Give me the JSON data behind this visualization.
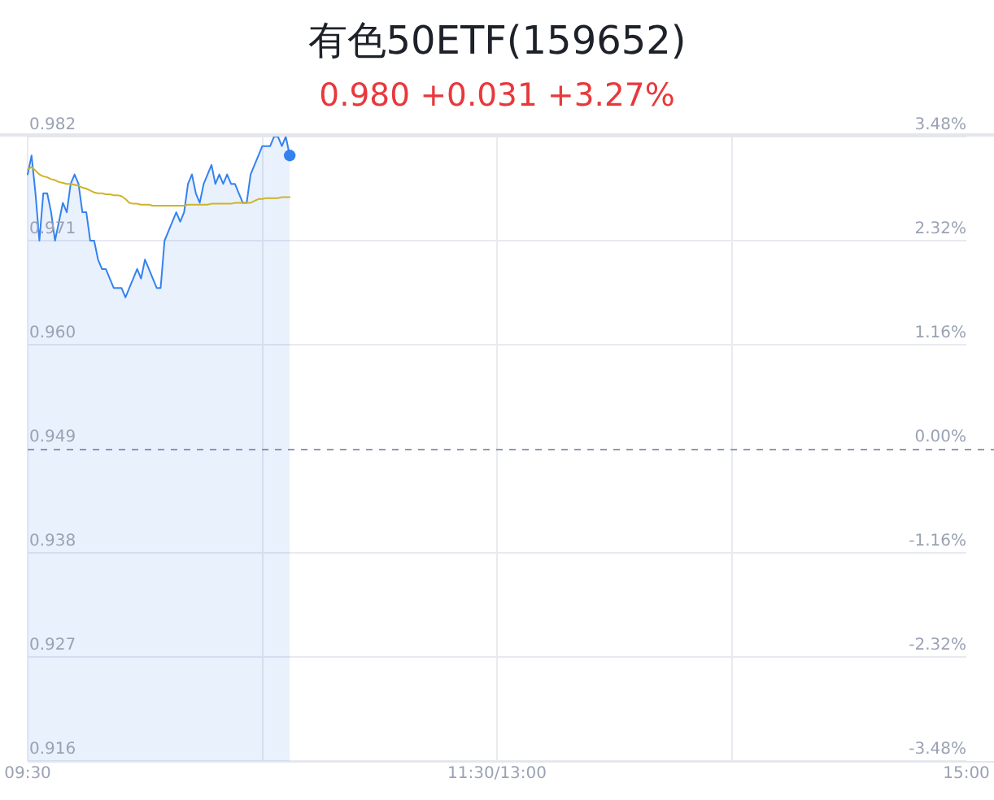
{
  "chart_data": {
    "type": "area",
    "title": "有色50ETF(159652)",
    "subtitle": "0.980 +0.031 +3.27%",
    "categories": [
      "09:30",
      null,
      null,
      null,
      null,
      null,
      null,
      null,
      null,
      null,
      null,
      null,
      null,
      null,
      null,
      null,
      null,
      null,
      null,
      null,
      null,
      null,
      null,
      null,
      null,
      null,
      null,
      null,
      null,
      null,
      null,
      null,
      null,
      null,
      null,
      null,
      null,
      null,
      null,
      null,
      null,
      null,
      null,
      null,
      null,
      null,
      null,
      null,
      null,
      null,
      null,
      null,
      null,
      null,
      null,
      null,
      null,
      null,
      null,
      null,
      null,
      null,
      null,
      null,
      null,
      null,
      null,
      null,
      null,
      null,
      null,
      null,
      null,
      null,
      null,
      null,
      null,
      null,
      null,
      null,
      null,
      null,
      null,
      null,
      null,
      null,
      null,
      null,
      null,
      null,
      null,
      null,
      null,
      null,
      null,
      null,
      null,
      null,
      null,
      null,
      null,
      null,
      null,
      null,
      null,
      null,
      null,
      null,
      null,
      null,
      null,
      null,
      null,
      null,
      null,
      null,
      null,
      null,
      null,
      null,
      "11:30/13:00",
      null,
      null,
      null,
      null,
      null,
      null,
      null,
      null,
      null,
      null,
      null,
      null,
      null,
      null,
      null,
      null,
      null,
      null,
      null,
      null,
      null,
      null,
      null,
      null,
      null,
      null,
      null,
      null,
      null,
      null,
      null,
      null,
      null,
      null,
      null,
      null,
      null,
      null,
      null,
      null,
      null,
      null,
      null,
      null,
      null,
      null,
      null,
      null,
      null,
      null,
      null,
      null,
      null,
      null,
      null,
      null,
      null,
      null,
      null,
      null,
      null,
      null,
      null,
      null,
      null,
      null,
      null,
      null,
      null,
      null,
      null,
      null,
      null,
      null,
      null,
      null,
      null,
      null,
      null,
      null,
      null,
      null,
      null,
      null,
      null,
      null,
      null,
      null,
      null,
      null,
      null,
      null,
      null,
      null,
      null,
      null,
      null,
      null,
      null,
      null,
      null,
      null,
      null,
      null,
      null,
      null,
      null,
      null,
      null,
      null,
      null,
      null,
      null,
      null,
      null,
      null,
      null,
      null,
      null,
      "15:00"
    ],
    "ylim": [
      0.916,
      0.982
    ],
    "yticks": [
      {
        "value": 0.916,
        "label": "0.916"
      },
      {
        "value": 0.927,
        "label": "0.927"
      },
      {
        "value": 0.938,
        "label": "0.938"
      },
      {
        "value": 0.949,
        "label": "0.949"
      },
      {
        "value": 0.96,
        "label": "0.960"
      },
      {
        "value": 0.971,
        "label": "0.971"
      },
      {
        "value": 0.982,
        "label": "0.982"
      }
    ],
    "y2lim": [
      -3.48,
      3.48
    ],
    "y2ticks": [
      {
        "value": -3.48,
        "label": "-3.48%"
      },
      {
        "value": -2.32,
        "label": "-2.32%"
      },
      {
        "value": -1.16,
        "label": "-1.16%"
      },
      {
        "value": 0,
        "label": "0.00%"
      },
      {
        "value": 1.16,
        "label": "1.16%"
      },
      {
        "value": 2.32,
        "label": "2.32%"
      },
      {
        "value": 3.48,
        "label": "3.48%"
      }
    ],
    "grid": true,
    "ref_lines": [
      {
        "axis": "y",
        "value": 0.949,
        "color": "#8e9ab0",
        "line_style": "dashed"
      }
    ],
    "series": [
      {
        "color": "#3482f0",
        "values": [
          0.978,
          0.98,
          0.976,
          0.971,
          0.976,
          0.976,
          0.974,
          0.971,
          0.973,
          0.975,
          0.974,
          0.977,
          0.978,
          0.977,
          0.974,
          0.974,
          0.971,
          0.971,
          0.969,
          0.968,
          0.968,
          0.967,
          0.966,
          0.966,
          0.966,
          0.965,
          0.966,
          0.967,
          0.968,
          0.967,
          0.969,
          0.968,
          0.967,
          0.966,
          0.966,
          0.971,
          0.972,
          0.973,
          0.974,
          0.973,
          0.974,
          0.977,
          0.978,
          0.976,
          0.975,
          0.977,
          0.978,
          0.979,
          0.977,
          0.978,
          0.977,
          0.978,
          0.977,
          0.977,
          0.976,
          0.975,
          0.975,
          0.978,
          0.979,
          0.98,
          0.981,
          0.981,
          0.981,
          0.982,
          0.982,
          0.981,
          0.982,
          0.98,
          null,
          null,
          null,
          null,
          null,
          null,
          null,
          null,
          null,
          null,
          null,
          null,
          null,
          null,
          null,
          null,
          null,
          null,
          null,
          null,
          null,
          null,
          null,
          null,
          null,
          null,
          null,
          null,
          null,
          null,
          null,
          null,
          null,
          null,
          null,
          null,
          null,
          null,
          null,
          null,
          null,
          null,
          null,
          null,
          null,
          null,
          null,
          null,
          null,
          null,
          null,
          null,
          null,
          null,
          null,
          null,
          null,
          null,
          null,
          null,
          null,
          null,
          null,
          null,
          null,
          null,
          null,
          null,
          null,
          null,
          null,
          null,
          null,
          null,
          null,
          null,
          null,
          null,
          null,
          null,
          null,
          null,
          null,
          null,
          null,
          null,
          null,
          null,
          null,
          null,
          null,
          null,
          null,
          null,
          null,
          null,
          null,
          null,
          null,
          null,
          null,
          null,
          null,
          null,
          null,
          null,
          null,
          null,
          null,
          null,
          null,
          null,
          null,
          null,
          null,
          null,
          null,
          null,
          null,
          null,
          null,
          null,
          null,
          null,
          null,
          null,
          null,
          null,
          null,
          null,
          null,
          null,
          null,
          null,
          null,
          null,
          null,
          null,
          null,
          null,
          null,
          null,
          null,
          null,
          null,
          null,
          null,
          null,
          null,
          null,
          null,
          null,
          null,
          null,
          null,
          null,
          null,
          null,
          null,
          null,
          null,
          null,
          null,
          null,
          null,
          null,
          null,
          null,
          null,
          null,
          null,
          null,
          null
        ]
      },
      {
        "type": "line",
        "color": "#cdb427",
        "values": [
          0.9785,
          0.9788,
          0.9784,
          0.978,
          0.9778,
          0.9777,
          0.9775,
          0.9774,
          0.9772,
          0.9771,
          0.977,
          0.977,
          0.9769,
          0.9768,
          0.9766,
          0.9765,
          0.9763,
          0.9761,
          0.976,
          0.976,
          0.9759,
          0.9759,
          0.9758,
          0.9758,
          0.9757,
          0.9754,
          0.975,
          0.9749,
          0.9749,
          0.9748,
          0.9748,
          0.9748,
          0.9747,
          0.9747,
          0.9747,
          0.9747,
          0.9747,
          0.9747,
          0.9747,
          0.9747,
          0.9747,
          0.9748,
          0.9748,
          0.9748,
          0.9748,
          0.9748,
          0.9748,
          0.9749,
          0.9749,
          0.9749,
          0.9749,
          0.9749,
          0.9749,
          0.975,
          0.975,
          0.975,
          0.975,
          0.975,
          0.9752,
          0.9754,
          0.9754,
          0.9755,
          0.9755,
          0.9755,
          0.9755,
          0.9756,
          0.9756,
          0.9756,
          null,
          null,
          null,
          null,
          null,
          null,
          null,
          null,
          null,
          null,
          null,
          null,
          null,
          null,
          null,
          null,
          null,
          null,
          null,
          null,
          null,
          null,
          null,
          null,
          null,
          null,
          null,
          null,
          null,
          null,
          null,
          null,
          null,
          null,
          null,
          null,
          null,
          null,
          null,
          null,
          null,
          null,
          null,
          null,
          null,
          null,
          null,
          null,
          null,
          null,
          null,
          null,
          null,
          null,
          null,
          null,
          null,
          null,
          null,
          null,
          null,
          null,
          null,
          null,
          null,
          null,
          null,
          null,
          null,
          null,
          null,
          null,
          null,
          null,
          null,
          null,
          null,
          null,
          null,
          null,
          null,
          null,
          null,
          null,
          null,
          null,
          null,
          null,
          null,
          null,
          null,
          null,
          null,
          null,
          null,
          null,
          null,
          null,
          null,
          null,
          null,
          null,
          null,
          null,
          null,
          null,
          null,
          null,
          null,
          null,
          null,
          null,
          null,
          null,
          null,
          null,
          null,
          null,
          null,
          null,
          null,
          null,
          null,
          null,
          null,
          null,
          null,
          null,
          null,
          null,
          null,
          null,
          null,
          null,
          null,
          null,
          null,
          null,
          null,
          null,
          null,
          null,
          null,
          null,
          null,
          null,
          null,
          null,
          null,
          null,
          null,
          null,
          null,
          null,
          null,
          null,
          null,
          null,
          null,
          null,
          null,
          null,
          null,
          null,
          null,
          null,
          null,
          null,
          null,
          null,
          null,
          null,
          null
        ]
      },
      {
        "type": "scatter",
        "color": "#3482f0",
        "marker": "circle",
        "values": [
          null,
          null,
          null,
          null,
          null,
          null,
          null,
          null,
          null,
          null,
          null,
          null,
          null,
          null,
          null,
          null,
          null,
          null,
          null,
          null,
          null,
          null,
          null,
          null,
          null,
          null,
          null,
          null,
          null,
          null,
          null,
          null,
          null,
          null,
          null,
          null,
          null,
          null,
          null,
          null,
          null,
          null,
          null,
          null,
          null,
          null,
          null,
          null,
          null,
          null,
          null,
          null,
          null,
          null,
          null,
          null,
          null,
          null,
          null,
          null,
          null,
          null,
          null,
          null,
          null,
          null,
          null,
          0.98,
          null,
          null,
          null,
          null,
          null,
          null,
          null,
          null,
          null,
          null,
          null,
          null,
          null,
          null,
          null,
          null,
          null,
          null,
          null,
          null,
          null,
          null,
          null,
          null,
          null,
          null,
          null,
          null,
          null,
          null,
          null,
          null,
          null,
          null,
          null,
          null,
          null,
          null,
          null,
          null,
          null,
          null,
          null,
          null,
          null,
          null,
          null,
          null,
          null,
          null,
          null,
          null,
          null,
          null,
          null,
          null,
          null,
          null,
          null,
          null,
          null,
          null,
          null,
          null,
          null,
          null,
          null,
          null,
          null,
          null,
          null,
          null,
          null,
          null,
          null,
          null,
          null,
          null,
          null,
          null,
          null,
          null,
          null,
          null,
          null,
          null,
          null,
          null,
          null,
          null,
          null,
          null,
          null,
          null,
          null,
          null,
          null,
          null,
          null,
          null,
          null,
          null,
          null,
          null,
          null,
          null,
          null,
          null,
          null,
          null,
          null,
          null,
          null,
          null,
          null,
          null,
          null,
          null,
          null,
          null,
          null,
          null,
          null,
          null,
          null,
          null,
          null,
          null,
          null,
          null,
          null,
          null,
          null,
          null,
          null,
          null,
          null,
          null,
          null,
          null,
          null,
          null,
          null,
          null,
          null,
          null,
          null,
          null,
          null,
          null,
          null,
          null,
          null,
          null,
          null,
          null,
          null,
          null,
          null,
          null,
          null,
          null,
          null,
          null,
          null,
          null,
          null,
          null,
          null,
          null,
          null,
          null,
          null
        ]
      }
    ]
  }
}
